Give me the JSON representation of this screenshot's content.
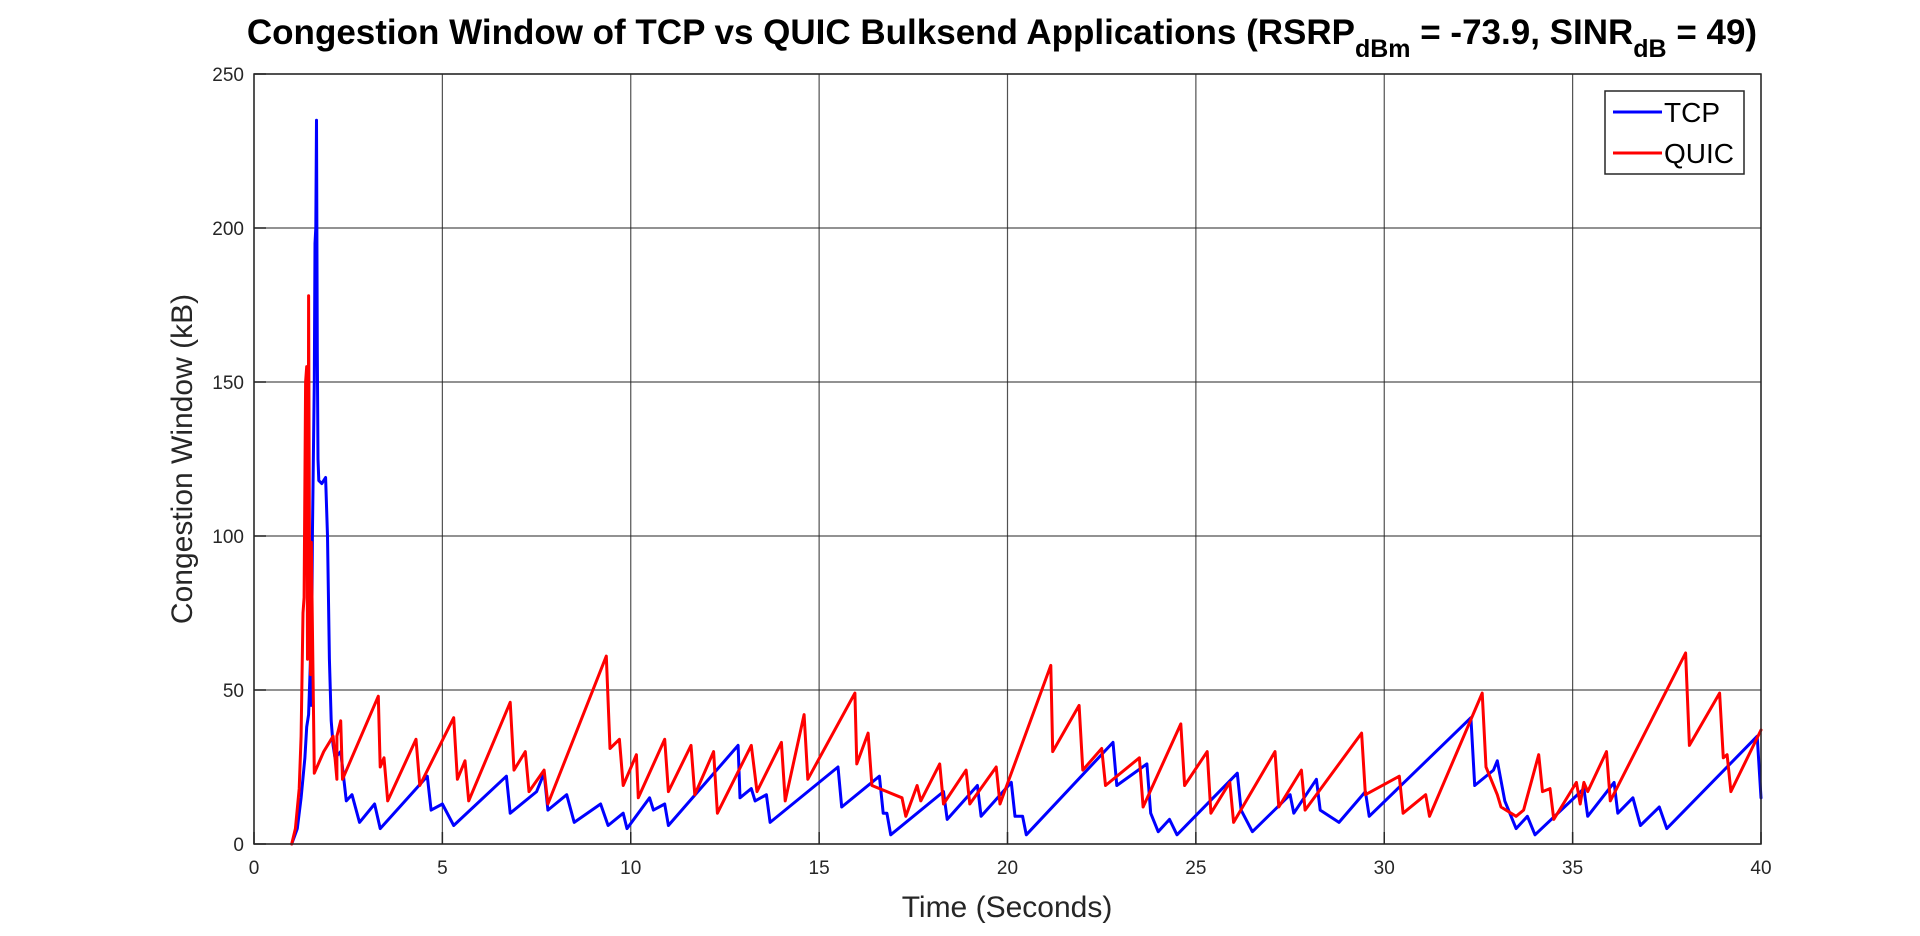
{
  "chart_data": {
    "type": "line",
    "title": {
      "prefix": "Congestion Window of TCP vs QUIC Bulksend Applications (RSRP",
      "sub1": "dBm",
      "middle": " = -73.9, SINR",
      "sub2": "dB",
      "suffix": " = 49)"
    },
    "xlabel": "Time (Seconds)",
    "ylabel": "Congestion Window (kB)",
    "xlim": [
      0,
      40
    ],
    "ylim": [
      0,
      250
    ],
    "xticks": [
      0,
      5,
      10,
      15,
      20,
      25,
      30,
      35,
      40
    ],
    "yticks": [
      0,
      50,
      100,
      150,
      200,
      250
    ],
    "grid": true,
    "legend_position": "top-right",
    "series": [
      {
        "name": "TCP",
        "color": "#0000ff",
        "points": [
          [
            1.0,
            0
          ],
          [
            1.15,
            5
          ],
          [
            1.25,
            15
          ],
          [
            1.35,
            28
          ],
          [
            1.4,
            38
          ],
          [
            1.45,
            42
          ],
          [
            1.5,
            60
          ],
          [
            1.52,
            45
          ],
          [
            1.55,
            100
          ],
          [
            1.6,
            150
          ],
          [
            1.62,
            195
          ],
          [
            1.64,
            200
          ],
          [
            1.66,
            235
          ],
          [
            1.68,
            160
          ],
          [
            1.7,
            125
          ],
          [
            1.72,
            118
          ],
          [
            1.8,
            117
          ],
          [
            1.9,
            119
          ],
          [
            1.95,
            100
          ],
          [
            2.0,
            60
          ],
          [
            2.05,
            40
          ],
          [
            2.1,
            32
          ],
          [
            2.15,
            28
          ],
          [
            2.3,
            30
          ],
          [
            2.45,
            14
          ],
          [
            2.6,
            16
          ],
          [
            2.8,
            7
          ],
          [
            3.2,
            13
          ],
          [
            3.35,
            5
          ],
          [
            4.6,
            22
          ],
          [
            4.7,
            11
          ],
          [
            5.0,
            13
          ],
          [
            5.3,
            6
          ],
          [
            6.7,
            22
          ],
          [
            6.8,
            10
          ],
          [
            7.5,
            17
          ],
          [
            7.7,
            23
          ],
          [
            7.8,
            11
          ],
          [
            8.3,
            16
          ],
          [
            8.5,
            7
          ],
          [
            9.2,
            13
          ],
          [
            9.4,
            6
          ],
          [
            9.8,
            10
          ],
          [
            9.9,
            5
          ],
          [
            10.5,
            15
          ],
          [
            10.6,
            11
          ],
          [
            10.9,
            13
          ],
          [
            11.0,
            6
          ],
          [
            12.85,
            32
          ],
          [
            12.9,
            15
          ],
          [
            13.2,
            18
          ],
          [
            13.3,
            14
          ],
          [
            13.6,
            16
          ],
          [
            13.7,
            7
          ],
          [
            15.5,
            25
          ],
          [
            15.6,
            12
          ],
          [
            16.6,
            22
          ],
          [
            16.7,
            10
          ],
          [
            16.8,
            10
          ],
          [
            16.9,
            3
          ],
          [
            18.3,
            17
          ],
          [
            18.4,
            8
          ],
          [
            19.2,
            19
          ],
          [
            19.3,
            9
          ],
          [
            20.1,
            20
          ],
          [
            20.2,
            9
          ],
          [
            20.4,
            9
          ],
          [
            20.5,
            3
          ],
          [
            22.8,
            33
          ],
          [
            22.9,
            19
          ],
          [
            23.7,
            26
          ],
          [
            23.8,
            10
          ],
          [
            24.0,
            4
          ],
          [
            24.3,
            8
          ],
          [
            24.5,
            3
          ],
          [
            26.1,
            23
          ],
          [
            26.2,
            11
          ],
          [
            26.5,
            4
          ],
          [
            27.5,
            16
          ],
          [
            27.6,
            10
          ],
          [
            28.2,
            21
          ],
          [
            28.3,
            11
          ],
          [
            28.8,
            7
          ],
          [
            29.5,
            17
          ],
          [
            29.6,
            9
          ],
          [
            32.3,
            41
          ],
          [
            32.4,
            19
          ],
          [
            32.9,
            24
          ],
          [
            33.0,
            27
          ],
          [
            33.2,
            14
          ],
          [
            33.5,
            5
          ],
          [
            33.8,
            9
          ],
          [
            34.0,
            3
          ],
          [
            35.3,
            18
          ],
          [
            35.4,
            9
          ],
          [
            36.1,
            20
          ],
          [
            36.2,
            10
          ],
          [
            36.6,
            15
          ],
          [
            36.8,
            6
          ],
          [
            37.3,
            12
          ],
          [
            37.5,
            5
          ],
          [
            39.9,
            35
          ],
          [
            40.0,
            15
          ]
        ]
      },
      {
        "name": "QUIC",
        "color": "#ff0000",
        "points": [
          [
            1.0,
            0
          ],
          [
            1.1,
            5
          ],
          [
            1.2,
            18
          ],
          [
            1.25,
            35
          ],
          [
            1.3,
            75
          ],
          [
            1.33,
            80
          ],
          [
            1.37,
            150
          ],
          [
            1.4,
            155
          ],
          [
            1.42,
            60
          ],
          [
            1.44,
            110
          ],
          [
            1.45,
            178
          ],
          [
            1.47,
            100
          ],
          [
            1.5,
            55
          ],
          [
            1.52,
            98
          ],
          [
            1.6,
            23
          ],
          [
            1.85,
            30
          ],
          [
            2.1,
            35
          ],
          [
            2.2,
            21
          ],
          [
            2.2,
            35
          ],
          [
            2.3,
            40
          ],
          [
            2.35,
            21
          ],
          [
            3.3,
            48
          ],
          [
            3.35,
            25
          ],
          [
            3.45,
            28
          ],
          [
            3.55,
            14
          ],
          [
            4.3,
            34
          ],
          [
            4.4,
            19
          ],
          [
            5.3,
            41
          ],
          [
            5.4,
            21
          ],
          [
            5.6,
            27
          ],
          [
            5.7,
            14
          ],
          [
            6.8,
            46
          ],
          [
            6.9,
            24
          ],
          [
            7.2,
            30
          ],
          [
            7.3,
            17
          ],
          [
            7.7,
            24
          ],
          [
            7.8,
            13
          ],
          [
            9.35,
            61
          ],
          [
            9.45,
            31
          ],
          [
            9.7,
            34
          ],
          [
            9.8,
            19
          ],
          [
            10.15,
            29
          ],
          [
            10.2,
            15
          ],
          [
            10.9,
            34
          ],
          [
            11.0,
            17
          ],
          [
            11.6,
            32
          ],
          [
            11.7,
            16
          ],
          [
            12.2,
            30
          ],
          [
            12.3,
            10
          ],
          [
            13.2,
            32
          ],
          [
            13.35,
            17
          ],
          [
            14.0,
            33
          ],
          [
            14.1,
            14
          ],
          [
            14.6,
            42
          ],
          [
            14.7,
            21
          ],
          [
            15.95,
            49
          ],
          [
            16.0,
            26
          ],
          [
            16.3,
            36
          ],
          [
            16.4,
            19
          ],
          [
            17.2,
            15
          ],
          [
            17.3,
            9
          ],
          [
            17.6,
            19
          ],
          [
            17.7,
            14
          ],
          [
            18.2,
            26
          ],
          [
            18.3,
            13
          ],
          [
            18.9,
            24
          ],
          [
            19.0,
            13
          ],
          [
            19.7,
            25
          ],
          [
            19.8,
            13
          ],
          [
            21.15,
            58
          ],
          [
            21.2,
            30
          ],
          [
            21.9,
            45
          ],
          [
            22.0,
            24
          ],
          [
            22.5,
            31
          ],
          [
            22.6,
            19
          ],
          [
            23.5,
            28
          ],
          [
            23.6,
            12
          ],
          [
            24.6,
            39
          ],
          [
            24.7,
            19
          ],
          [
            25.3,
            30
          ],
          [
            25.4,
            10
          ],
          [
            25.9,
            20
          ],
          [
            26.0,
            7
          ],
          [
            27.1,
            30
          ],
          [
            27.2,
            12
          ],
          [
            27.8,
            24
          ],
          [
            27.9,
            11
          ],
          [
            29.4,
            36
          ],
          [
            29.5,
            16
          ],
          [
            30.4,
            22
          ],
          [
            30.5,
            10
          ],
          [
            31.1,
            16
          ],
          [
            31.2,
            9
          ],
          [
            32.6,
            49
          ],
          [
            32.7,
            25
          ],
          [
            33.0,
            16
          ],
          [
            33.1,
            12
          ],
          [
            33.5,
            9
          ],
          [
            33.7,
            11
          ],
          [
            34.1,
            29
          ],
          [
            34.2,
            17
          ],
          [
            34.4,
            18
          ],
          [
            34.5,
            8
          ],
          [
            35.1,
            20
          ],
          [
            35.2,
            13
          ],
          [
            35.3,
            20
          ],
          [
            35.4,
            17
          ],
          [
            35.9,
            30
          ],
          [
            36.0,
            14
          ],
          [
            38.0,
            62
          ],
          [
            38.1,
            32
          ],
          [
            38.9,
            49
          ],
          [
            39.0,
            28
          ],
          [
            39.1,
            29
          ],
          [
            39.2,
            17
          ],
          [
            40.0,
            37
          ]
        ]
      }
    ]
  }
}
